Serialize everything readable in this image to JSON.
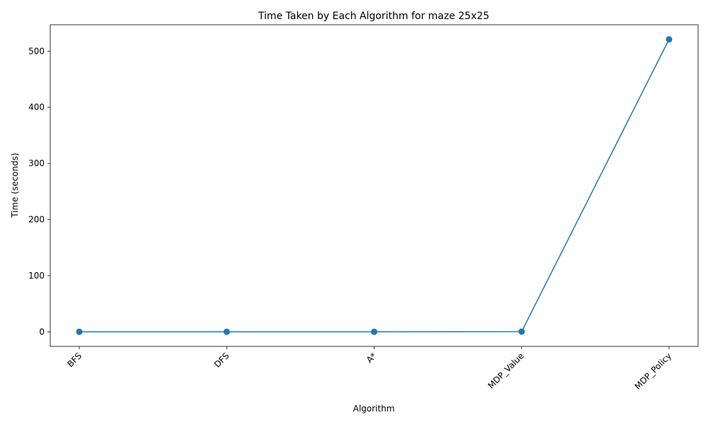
{
  "chart_data": {
    "type": "line",
    "title": "Time Taken by Each Algorithm for maze 25x25",
    "xlabel": "Algorithm",
    "ylabel": "Time (seconds)",
    "categories": [
      "BFS",
      "DFS",
      "A*",
      "MDP_Value",
      "MDP_Policy"
    ],
    "series": [
      {
        "values": [
          0.05,
          0.04,
          0.05,
          0.3,
          521
        ],
        "color": "#1f77b4",
        "marker": "circle"
      }
    ],
    "yticks": [
      0,
      100,
      200,
      300,
      400,
      500
    ],
    "ylim": [
      -26,
      547
    ],
    "grid": false,
    "legend": "none"
  }
}
